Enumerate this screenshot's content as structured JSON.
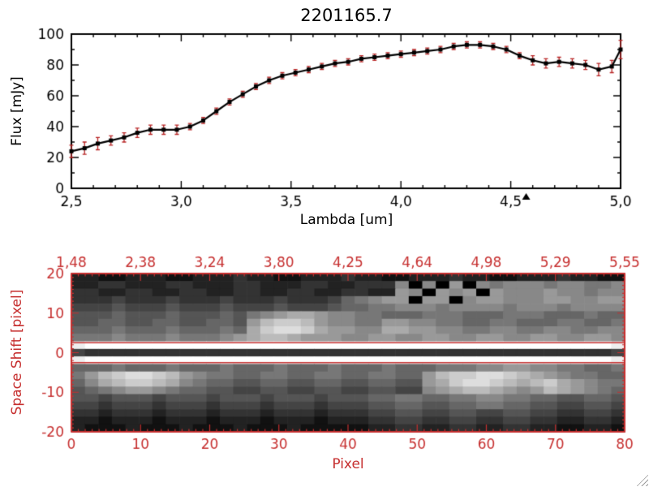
{
  "figure": {
    "background": "#ffffff",
    "accent_red": "#c62f2f",
    "icons": {
      "resize_grip": "diagonal-hatch-grip"
    }
  },
  "chart_data": [
    {
      "type": "line",
      "title": "2201165.7",
      "xlabel": "Lambda [um]",
      "ylabel": "Flux [mJy]",
      "xlim": [
        2.5,
        5.0
      ],
      "ylim": [
        0,
        100
      ],
      "xticks": [
        2.5,
        3.0,
        3.5,
        4.0,
        4.5,
        5.0
      ],
      "xtick_labels": [
        "2,5",
        "3,0",
        "3,5",
        "4,0",
        "4,5",
        "5,0"
      ],
      "yticks": [
        0,
        20,
        40,
        60,
        80,
        100
      ],
      "ytick_labels": [
        "0",
        "20",
        "40",
        "60",
        "80",
        "100"
      ],
      "line_color": "#000000",
      "marker": "square",
      "error_color": "#b82424",
      "cursor_marker_x": 4.57,
      "x": [
        2.5,
        2.56,
        2.62,
        2.68,
        2.74,
        2.8,
        2.86,
        2.92,
        2.98,
        3.04,
        3.1,
        3.16,
        3.22,
        3.28,
        3.34,
        3.4,
        3.46,
        3.52,
        3.58,
        3.64,
        3.7,
        3.76,
        3.82,
        3.88,
        3.94,
        4.0,
        4.06,
        4.12,
        4.18,
        4.24,
        4.3,
        4.36,
        4.42,
        4.48,
        4.54,
        4.6,
        4.66,
        4.72,
        4.78,
        4.84,
        4.9,
        4.96,
        5.0
      ],
      "y": [
        24,
        26,
        29,
        31,
        33,
        36,
        38,
        38,
        38,
        40,
        44,
        50,
        56,
        61,
        66,
        70,
        73,
        75,
        77,
        79,
        81,
        82,
        84,
        85,
        86,
        87,
        88,
        89,
        90,
        92,
        93,
        93,
        92,
        90,
        86,
        83,
        81,
        82,
        81,
        80,
        77,
        79,
        90
      ],
      "yerr": [
        4,
        4,
        4,
        3,
        3,
        3,
        3,
        3,
        3,
        2,
        2,
        2,
        2,
        2,
        2,
        2,
        2,
        2,
        2,
        2,
        2,
        2,
        2,
        2,
        2,
        2,
        2,
        2,
        2,
        2,
        2,
        2,
        2,
        2,
        2,
        3,
        3,
        3,
        3,
        3,
        4,
        4,
        6
      ]
    },
    {
      "type": "heatmap",
      "xlabel": "Pixel",
      "ylabel": "Space Shift [pixel]",
      "xlim": [
        0,
        80
      ],
      "ylim": [
        -20,
        20
      ],
      "xticks": [
        0,
        10,
        20,
        30,
        40,
        50,
        60,
        70,
        80
      ],
      "xtick_labels": [
        "0",
        "10",
        "20",
        "30",
        "40",
        "50",
        "60",
        "70",
        "80"
      ],
      "top_axis_labels": [
        "1,48",
        "2,38",
        "3,24",
        "3,80",
        "4,25",
        "4,64",
        "4,98",
        "5,29",
        "5,55"
      ],
      "yticks": [
        20,
        10,
        0,
        -10,
        -20
      ],
      "ytick_labels": [
        "20",
        "10",
        "0",
        "-10",
        "-20"
      ],
      "axis_color": "#c62f2f",
      "aperture_lines_y": [
        2.5,
        -2.5
      ],
      "rows_span_y": [
        20,
        -20
      ],
      "cols_span_x": [
        0,
        80
      ],
      "intensity_rows_hex": [
        "22112221122232211222322112223221122232211",
        "22332223322233222332233380809087888788778",
        "33223322332233223322332298098909888988788",
        "33343334333433343334678990990899888998899",
        "44454445444544454445667788878888788878888",
        "5556555655565789aa98877666777666777666766",
        "55665566556659bccb98877998877667766677667",
        "6667666766676acddca9988aa9988778877887788",
        "7778777877789abba999889988998899889988998",
        "efffffffffffffffffffffffffffffffffffffffe",
        "43333333333333333333333333333333333333334",
        "efffffffffffffffffffffffffffffffffffffffe",
        "66676667666766676667666766677788998877667",
        "79bcddcb9877667766776677669bccddcba987766",
        "68abccba8766556655665566559acddcbabca9877",
        "5678998766554455445544554489abba989ba9876",
        "55455545554555455545556677667788776655665",
        "44344434443444344434445566556677665544554",
        "33233323332333233323334455445544554433443",
        "22122212221222122212223344334433443322332",
        "21112111211121112111112233223322332211221"
      ]
    }
  ]
}
